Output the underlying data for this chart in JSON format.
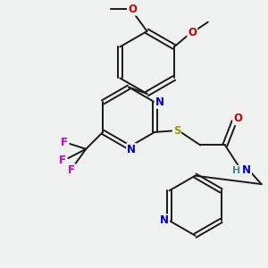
{
  "bg_color": "#eff1f1",
  "atom_colors": {
    "N": "#0000cc",
    "O": "#cc0000",
    "F": "#cc00cc",
    "S": "#999900",
    "H": "#448888",
    "C": "#1a1a1a"
  },
  "bond_lw": 1.4,
  "font_size": 8.5,
  "xlim": [
    0,
    10
  ],
  "ylim": [
    0,
    10
  ],
  "figsize": [
    3.0,
    3.0
  ],
  "dpi": 100
}
